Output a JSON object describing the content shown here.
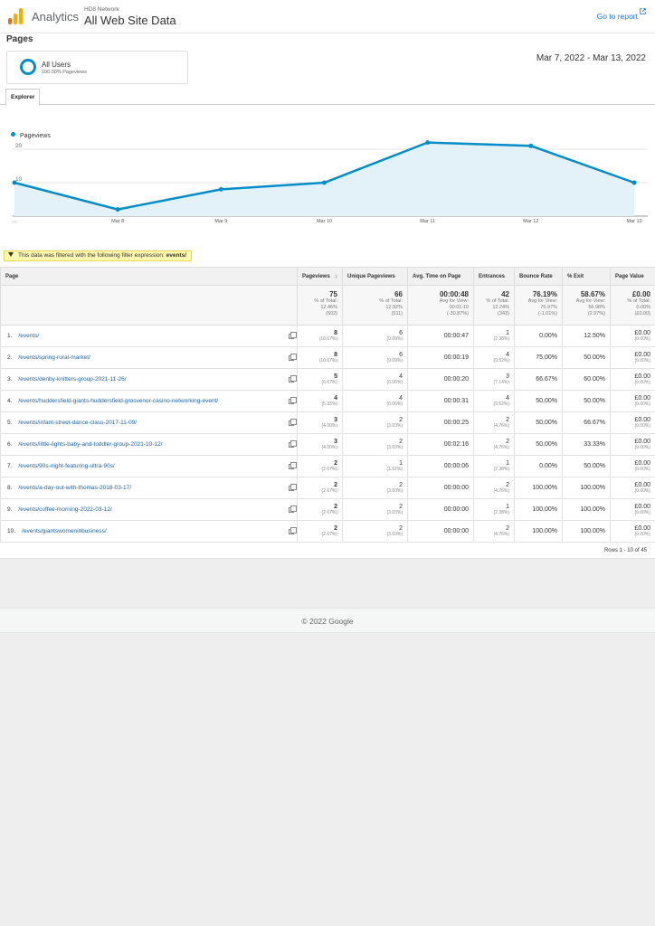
{
  "header": {
    "app_name": "Analytics",
    "account_small": "HD8 Network",
    "account_big": "All Web Site Data",
    "goto_report": "Go to report"
  },
  "page_title": "Pages",
  "segment": {
    "name": "All Users",
    "sub": "100.00% Pageviews"
  },
  "date_range": "Mar 7, 2022 - Mar 13, 2022",
  "tab_label": "Explorer",
  "chart_data": {
    "type": "area",
    "series": [
      {
        "name": "Pageviews",
        "values": [
          10,
          2,
          8,
          10,
          22,
          21,
          10
        ]
      }
    ],
    "categories": [
      "...",
      "Mar 8",
      "Mar 9",
      "Mar 10",
      "Mar 11",
      "Mar 12",
      "Mar 13"
    ],
    "y_ticks": [
      "20",
      "10"
    ],
    "ylim": [
      0,
      20
    ],
    "color": "#058dc7",
    "fill": "#e3f2f9",
    "grid": true
  },
  "filter": {
    "text": "This data was filtered with the following filter expression:",
    "expression": "events/"
  },
  "table": {
    "columns": [
      "Page",
      "Pageviews",
      "Unique Pageviews",
      "Avg. Time on Page",
      "Entrances",
      "Bounce Rate",
      "% Exit",
      "Page Value"
    ],
    "totals": [
      {
        "main": "75",
        "l1": "% of Total:",
        "l2": "12.46%",
        "l3": "(602)"
      },
      {
        "main": "66",
        "l1": "% of Total:",
        "l2": "12.92%",
        "l3": "(511)"
      },
      {
        "main": "00:00:48",
        "l1": "Avg for View:",
        "l2": "00:01:10",
        "l3": "(-30.87%)"
      },
      {
        "main": "42",
        "l1": "% of Total:",
        "l2": "12.24%",
        "l3": "(343)"
      },
      {
        "main": "76.19%",
        "l1": "Avg for View:",
        "l2": "76.97%",
        "l3": "(-1.01%)"
      },
      {
        "main": "58.67%",
        "l1": "Avg for View:",
        "l2": "56.98%",
        "l3": "(2.97%)"
      },
      {
        "main": "£0.00",
        "l1": "% of Total:",
        "l2": "0.00%",
        "l3": "(£0.00)"
      }
    ],
    "rows": [
      {
        "num": "1.",
        "page": "/events/",
        "pv": "8",
        "pv_pct": "(10.67%)",
        "upv": "6",
        "upv_pct": "(9.09%)",
        "time": "00:00:47",
        "ent": "1",
        "ent_pct": "(2.38%)",
        "br": "0.00%",
        "exit": "12.50%",
        "val": "£0.00",
        "val_pct": "(0.00%)"
      },
      {
        "num": "2.",
        "page": "/events/spring-rural-market/",
        "pv": "8",
        "pv_pct": "(10.67%)",
        "upv": "6",
        "upv_pct": "(9.09%)",
        "time": "00:00:19",
        "ent": "4",
        "ent_pct": "(9.52%)",
        "br": "75.00%",
        "exit": "50.00%",
        "val": "£0.00",
        "val_pct": "(0.00%)"
      },
      {
        "num": "3.",
        "page": "/events/denby-knitters-group-2021-11-26/",
        "pv": "5",
        "pv_pct": "(6.67%)",
        "upv": "4",
        "upv_pct": "(6.06%)",
        "time": "00:00:20",
        "ent": "3",
        "ent_pct": "(7.14%)",
        "br": "66.67%",
        "exit": "60.00%",
        "val": "£0.00",
        "val_pct": "(0.00%)"
      },
      {
        "num": "4.",
        "page": "/events/huddersfield-giants-huddersfield-grosvenor-casino-networking-event/",
        "pv": "4",
        "pv_pct": "(5.33%)",
        "upv": "4",
        "upv_pct": "(6.06%)",
        "time": "00:00:31",
        "ent": "4",
        "ent_pct": "(9.52%)",
        "br": "50.00%",
        "exit": "50.00%",
        "val": "£0.00",
        "val_pct": "(0.00%)"
      },
      {
        "num": "5.",
        "page": "/events/infant-street-dance-class-2017-11-09/",
        "pv": "3",
        "pv_pct": "(4.00%)",
        "upv": "2",
        "upv_pct": "(3.03%)",
        "time": "00:00:25",
        "ent": "2",
        "ent_pct": "(4.76%)",
        "br": "50.00%",
        "exit": "66.67%",
        "val": "£0.00",
        "val_pct": "(0.00%)"
      },
      {
        "num": "6.",
        "page": "/events/little-lights-baby-and-toddler-group-2021-10-12/",
        "pv": "3",
        "pv_pct": "(4.00%)",
        "upv": "2",
        "upv_pct": "(3.03%)",
        "time": "00:02:16",
        "ent": "2",
        "ent_pct": "(4.76%)",
        "br": "50.00%",
        "exit": "33.33%",
        "val": "£0.00",
        "val_pct": "(0.00%)"
      },
      {
        "num": "7.",
        "page": "/events/90s-night-featuring-ultra-90s/",
        "pv": "2",
        "pv_pct": "(2.67%)",
        "upv": "1",
        "upv_pct": "(1.52%)",
        "time": "00:00:06",
        "ent": "1",
        "ent_pct": "(2.38%)",
        "br": "0.00%",
        "exit": "50.00%",
        "val": "£0.00",
        "val_pct": "(0.00%)"
      },
      {
        "num": "8.",
        "page": "/events/a-day-out-with-thomas-2018-03-17/",
        "pv": "2",
        "pv_pct": "(2.67%)",
        "upv": "2",
        "upv_pct": "(3.03%)",
        "time": "00:00:00",
        "ent": "2",
        "ent_pct": "(4.76%)",
        "br": "100.00%",
        "exit": "100.00%",
        "val": "£0.00",
        "val_pct": "(0.00%)"
      },
      {
        "num": "9.",
        "page": "/events/coffee-morning-2022-03-12/",
        "pv": "2",
        "pv_pct": "(2.67%)",
        "upv": "2",
        "upv_pct": "(3.03%)",
        "time": "00:00:00",
        "ent": "1",
        "ent_pct": "(2.38%)",
        "br": "100.00%",
        "exit": "100.00%",
        "val": "£0.00",
        "val_pct": "(0.00%)"
      },
      {
        "num": "10.",
        "page": "/events/giantswomeninbusiness/",
        "pv": "2",
        "pv_pct": "(2.67%)",
        "upv": "2",
        "upv_pct": "(3.03%)",
        "time": "00:00:00",
        "ent": "2",
        "ent_pct": "(4.76%)",
        "br": "100.00%",
        "exit": "100.00%",
        "val": "£0.00",
        "val_pct": "(0.00%)"
      }
    ],
    "rows_info": "Rows 1 - 10 of 45"
  },
  "footer": "© 2022 Google"
}
